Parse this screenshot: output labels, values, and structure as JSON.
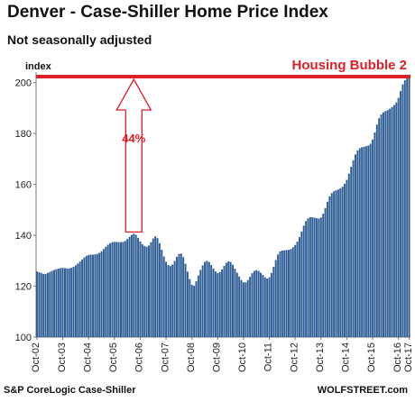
{
  "chart_data": {
    "type": "bar",
    "title": "Denver  - Case-Shiller Home Price Index",
    "subtitle": "Not seasonally adjusted",
    "ylabel": "index",
    "ylim": [
      100,
      202
    ],
    "yticks": [
      100,
      120,
      140,
      160,
      180,
      200
    ],
    "xticks": [
      "Oct-02",
      "Oct-03",
      "Oct-04",
      "Oct-05",
      "Oct-06",
      "Oct-07",
      "Oct-08",
      "Oct-09",
      "Oct-10",
      "Oct-11",
      "Oct-12",
      "Oct-13",
      "Oct-14",
      "Oct-15",
      "Oct-16",
      "Oct-17"
    ],
    "start_month": "Oct-02",
    "end_month": "Oct-17",
    "series": [
      {
        "color": "#2f5d95",
        "values": [
          125.8,
          125.5,
          125.2,
          124.8,
          124.8,
          125.2,
          125.6,
          126.0,
          126.4,
          126.7,
          126.9,
          127.1,
          127.2,
          127.1,
          127.0,
          127.0,
          127.2,
          127.6,
          128.2,
          128.9,
          129.7,
          130.5,
          131.3,
          131.9,
          132.3,
          132.4,
          132.4,
          132.5,
          132.7,
          133.1,
          133.7,
          134.6,
          135.5,
          136.3,
          136.9,
          137.3,
          137.4,
          137.4,
          137.3,
          137.3,
          137.4,
          137.8,
          138.5,
          139.4,
          140.2,
          140.6,
          140.2,
          139.0,
          137.6,
          136.5,
          135.8,
          135.5,
          136.0,
          137.3,
          138.8,
          139.6,
          138.9,
          136.9,
          134.3,
          131.7,
          129.6,
          128.3,
          127.9,
          128.5,
          129.9,
          131.5,
          132.7,
          132.8,
          131.4,
          128.8,
          125.7,
          122.8,
          120.6,
          120.2,
          121.9,
          124.2,
          126.4,
          128.2,
          129.5,
          130.0,
          129.5,
          128.3,
          126.9,
          125.8,
          125.2,
          125.5,
          126.6,
          128.0,
          129.2,
          129.8,
          129.5,
          128.4,
          126.9,
          125.3,
          123.8,
          122.4,
          121.5,
          121.5,
          122.4,
          123.7,
          125.1,
          126.0,
          126.3,
          126.0,
          125.3,
          124.4,
          123.5,
          123.0,
          123.5,
          125.2,
          127.6,
          130.3,
          132.5,
          133.7,
          134.0,
          134.1,
          134.2,
          134.3,
          134.6,
          135.3,
          136.2,
          137.5,
          139.3,
          141.5,
          143.8,
          145.6,
          146.7,
          147.1,
          147.1,
          146.9,
          146.7,
          146.6,
          147.0,
          148.5,
          150.7,
          153.2,
          155.3,
          156.6,
          157.3,
          157.7,
          158.0,
          158.4,
          159.1,
          160.2,
          161.8,
          164.2,
          166.9,
          169.5,
          171.8,
          173.3,
          174.2,
          174.6,
          174.8,
          175.0,
          175.3,
          176.0,
          177.6,
          180.4,
          183.5,
          186.0,
          187.5,
          188.3,
          188.8,
          189.2,
          189.7,
          190.4,
          191.2,
          192.2,
          194.0,
          196.7,
          199.3,
          200.9,
          201.6,
          202.0
        ]
      }
    ],
    "annotations": {
      "bubble_label": "Housing Bubble 2",
      "bubble_level": 202,
      "arrow_label": "44%",
      "arrow_month": "Jul-06",
      "arrow_from": 140.6,
      "arrow_to": 202,
      "line_color": "#dd1f26"
    },
    "source": "S&P CoreLogic Case-Shiller",
    "brand": "WOLFSTREET.com",
    "grid": false
  }
}
